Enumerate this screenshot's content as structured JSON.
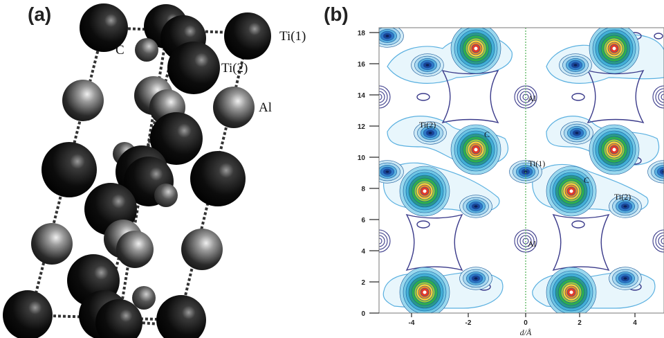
{
  "panel_a": {
    "label": "(a)",
    "atom_labels": {
      "ti1": "Ti(1)",
      "ti2": "Ti(2)",
      "c": "C",
      "al": "Al"
    }
  },
  "panel_b": {
    "label": "(b)",
    "map_labels": {
      "ti2_top": "Ti(2)",
      "c_top": "C",
      "al_top": "Al",
      "ti1": "Ti(1)",
      "c_mid": "C",
      "ti2_mid": "Ti(2)",
      "al_low": "Al"
    },
    "axis": {
      "xlabel": "d/Å",
      "x_ticks": [
        "-4",
        "-2",
        "0",
        "2",
        "4"
      ],
      "y_ticks": [
        "0",
        "2",
        "4",
        "6",
        "8",
        "10",
        "12",
        "14",
        "16",
        "18"
      ]
    }
  }
}
